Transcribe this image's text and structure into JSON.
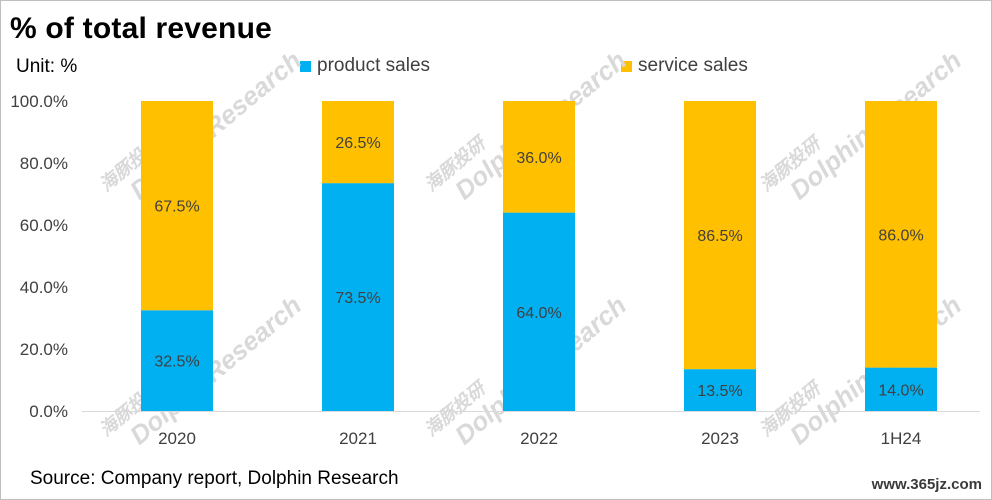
{
  "title": "% of total revenue",
  "unit_label": "Unit: %",
  "source": "Source: Company report, Dolphin Research",
  "site": "www.365jz.com",
  "watermark": "DolphinResearch",
  "watermark_cn": "海豚投研",
  "colors": {
    "product": "#00b0f0",
    "service": "#ffc000"
  },
  "chart_data": {
    "type": "bar",
    "stacked": true,
    "categories": [
      "2020",
      "2021",
      "2022",
      "2023",
      "1H24"
    ],
    "series": [
      {
        "name": "product sales",
        "values": [
          32.5,
          73.5,
          64.0,
          13.5,
          14.0
        ],
        "labels": [
          "32.5%",
          "73.5%",
          "64.0%",
          "13.5%",
          "14.0%"
        ]
      },
      {
        "name": "service sales",
        "values": [
          67.5,
          26.5,
          36.0,
          86.5,
          86.0
        ],
        "labels": [
          "67.5%",
          "26.5%",
          "36.0%",
          "86.5%",
          "86.0%"
        ]
      }
    ],
    "ylim": [
      0,
      100
    ],
    "yticks": [
      "0.0%",
      "20.0%",
      "40.0%",
      "60.0%",
      "80.0%",
      "100.0%"
    ],
    "grid": false,
    "legend": "top"
  }
}
